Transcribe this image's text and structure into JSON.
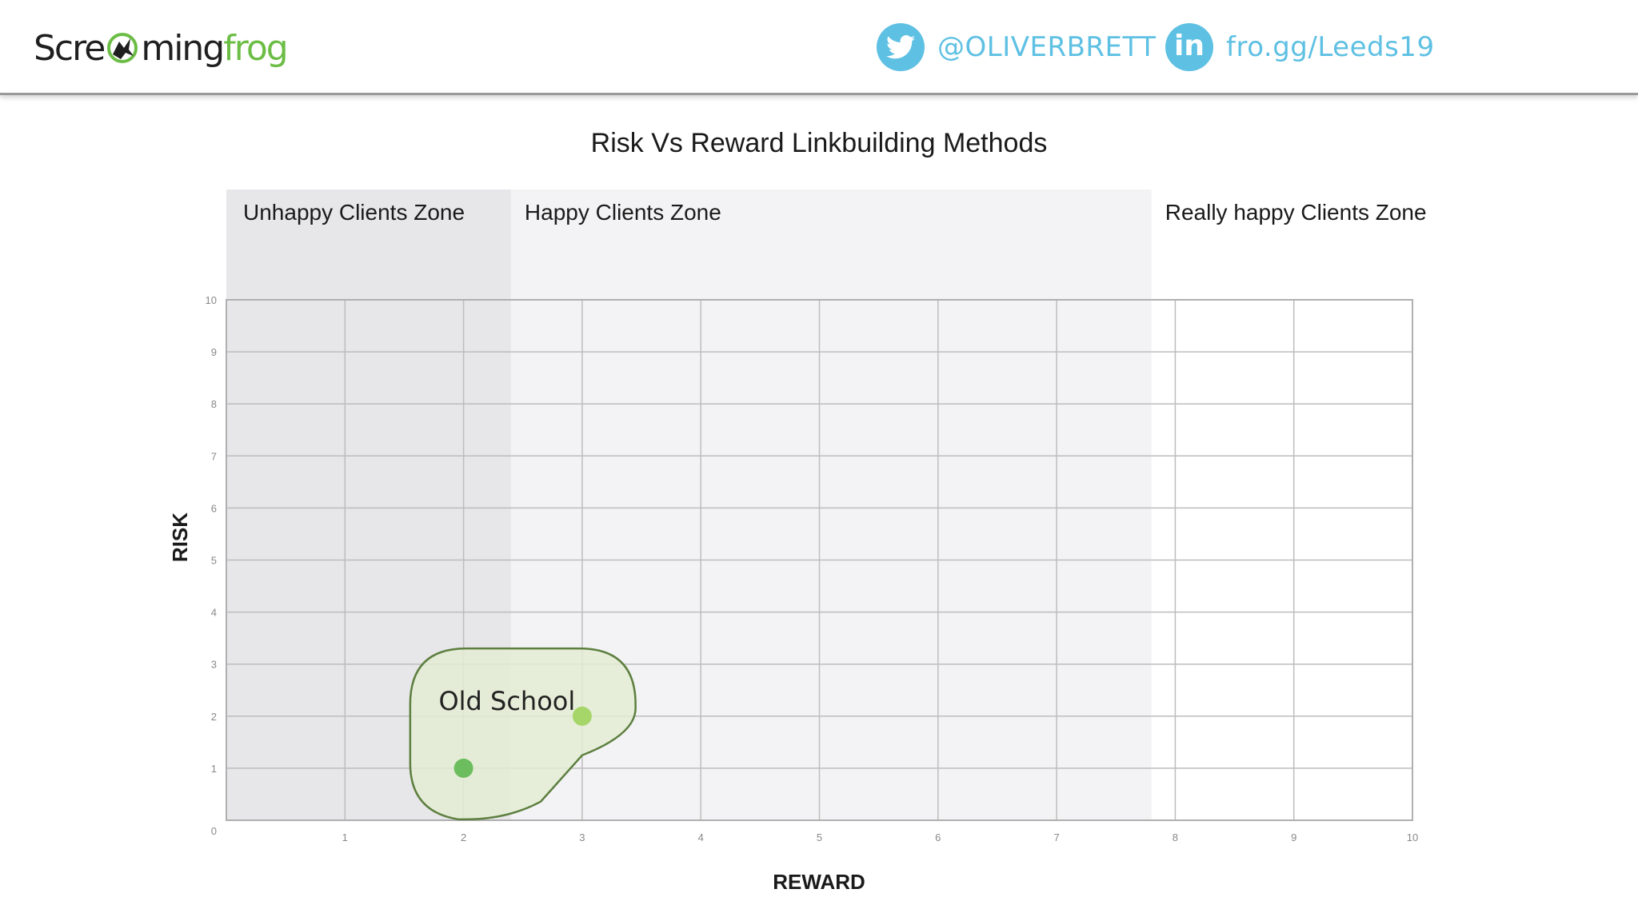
{
  "header": {
    "logo": {
      "part1": "Scre",
      "part2": "ming",
      "part3": "frog",
      "icon": "frog-icon"
    },
    "twitter": {
      "icon": "twitter-icon",
      "handle": "@OLIVERBRETT"
    },
    "linkedin": {
      "icon": "linkedin-icon",
      "link": "fro.gg/Leeds19"
    }
  },
  "colors": {
    "accent_blue": "#5ec0e3",
    "brand_green": "#6cbd45",
    "zone_unhappy": "#e7e6e9",
    "zone_happy": "#f3f3f5",
    "blob_fill": "#e3ecd4",
    "blob_stroke": "#5d7f3f",
    "point_dark": "#6cbd5e",
    "point_light": "#a6d66a"
  },
  "chart_data": {
    "type": "scatter",
    "title": "Risk Vs Reward Linkbuilding Methods",
    "xlabel": "REWARD",
    "ylabel": "RISK",
    "xlim": [
      0,
      10
    ],
    "ylim": [
      0,
      10
    ],
    "xticks": [
      1,
      2,
      3,
      4,
      5,
      6,
      7,
      8,
      9,
      10
    ],
    "yticks": [
      0,
      1,
      2,
      3,
      4,
      5,
      6,
      7,
      8,
      9,
      10
    ],
    "grid": true,
    "zones": [
      {
        "label": "Unhappy Clients Zone",
        "x_range": [
          0,
          2.4
        ]
      },
      {
        "label": "Happy Clients Zone",
        "x_range": [
          2.4,
          7.8
        ]
      },
      {
        "label": "Really happy Clients Zone",
        "x_range": [
          7.8,
          10
        ]
      }
    ],
    "groups": [
      {
        "label": "Old School",
        "points": [
          {
            "x": 2,
            "y": 1
          },
          {
            "x": 3,
            "y": 2
          }
        ]
      }
    ]
  }
}
